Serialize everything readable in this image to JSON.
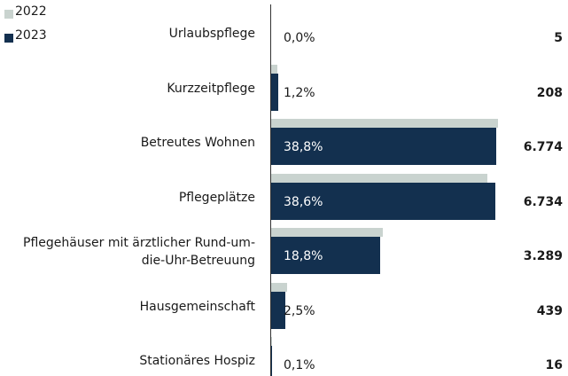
{
  "chart_data": {
    "type": "bar",
    "orientation": "horizontal",
    "categories": [
      "Urlaubspflege",
      "Kurzzeitpflege",
      "Betreutes Wohnen",
      "Pflegeplätze",
      "Pflegehäuser mit ärztlicher Rund-um-\ndie-Uhr-Betreuung",
      "Hausgemeinschaft",
      "Stationäres Hospiz"
    ],
    "series": [
      {
        "name": "2022",
        "color": "#c9d3cf",
        "values": [
          0,
          1.1,
          39.1,
          37.3,
          19.2,
          2.7,
          0.1
        ]
      },
      {
        "name": "2023",
        "color": "#13304f",
        "values": [
          0.0,
          1.2,
          38.8,
          38.6,
          18.8,
          2.5,
          0.1
        ],
        "value_labels": [
          "0,0%",
          "1,2%",
          "38,8%",
          "38,6%",
          "18,8%",
          "2,5%",
          "0,1%"
        ]
      }
    ],
    "counts": [
      "5",
      "208",
      "6.774",
      "6.734",
      "3.289",
      "439",
      "16"
    ],
    "legend": "top-left"
  }
}
